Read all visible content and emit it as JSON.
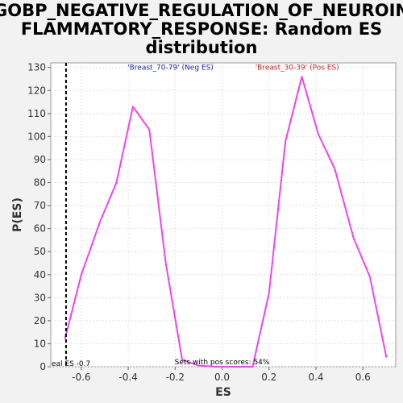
{
  "chart_data": {
    "type": "line",
    "title_lines": [
      "GOBP_NEGATIVE_REGULATION_OF_NEUROIN",
      "FLAMMATORY_RESPONSE: Random ES",
      "distribution"
    ],
    "xlabel": "ES",
    "ylabel": "P(ES)",
    "xlim": [
      -0.73,
      0.74
    ],
    "ylim": [
      0,
      132
    ],
    "x_ticks": [
      -0.6,
      -0.4,
      -0.2,
      0.0,
      0.2,
      0.4,
      0.6
    ],
    "x_tick_labels": [
      "-0.6",
      "-0.4",
      "-0.2",
      "0.0",
      "0.2",
      "0.4",
      "0.6"
    ],
    "y_ticks": [
      0,
      10,
      20,
      30,
      40,
      50,
      60,
      70,
      80,
      90,
      100,
      110,
      120,
      130
    ],
    "y_tick_labels": [
      "0",
      "10",
      "20",
      "30",
      "40",
      "50",
      "60",
      "70",
      "80",
      "90",
      "100",
      "110",
      "120",
      "130"
    ],
    "grid": true,
    "series": [
      {
        "color": "#ee44ee",
        "points": [
          [
            -0.67,
            12
          ],
          [
            -0.6,
            40
          ],
          [
            -0.52,
            63
          ],
          [
            -0.45,
            80
          ],
          [
            -0.38,
            113
          ],
          [
            -0.31,
            103
          ],
          [
            -0.24,
            45
          ],
          [
            -0.17,
            3
          ],
          [
            -0.1,
            0.5
          ],
          [
            -0.03,
            0
          ],
          [
            0.05,
            0
          ],
          [
            0.13,
            0
          ],
          [
            0.2,
            32
          ],
          [
            0.27,
            98
          ],
          [
            0.34,
            126
          ],
          [
            0.41,
            101
          ],
          [
            0.48,
            86
          ],
          [
            0.56,
            56
          ],
          [
            0.63,
            39
          ],
          [
            0.7,
            4
          ]
        ]
      }
    ],
    "actual_es": {
      "x": -0.665,
      "label": "eal ES -0.7",
      "color": "#000000"
    },
    "neg_label": {
      "text": "'Breast_70-79' (Neg ES)",
      "color": "#2222aa",
      "x": -0.22,
      "y": 129
    },
    "pos_label": {
      "text": "'Breast_30-39' (Pos ES)",
      "color": "#cc2222",
      "x": 0.32,
      "y": 129
    },
    "footer_text": {
      "text": "Sets with pos scores: 54%",
      "x": 0.0,
      "y": 1
    }
  }
}
